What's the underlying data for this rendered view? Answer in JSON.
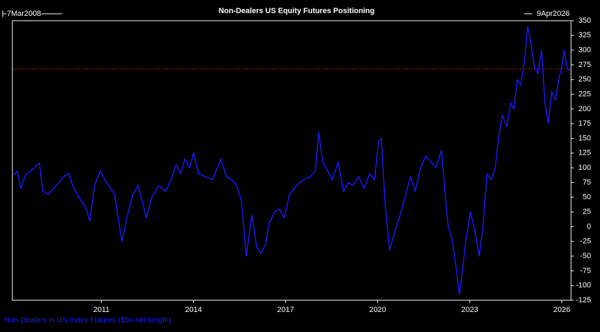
{
  "chart_data": {
    "type": "line",
    "title": "Non-Dealers US Equity Futures Positioning",
    "start_label": "7Mar2008",
    "end_label": "9Apr2026",
    "x": [
      2008.15,
      2008.26,
      2008.37,
      2008.55,
      2008.71,
      2008.82,
      2008.98,
      2009.09,
      2009.27,
      2009.45,
      2009.61,
      2009.76,
      2009.94,
      2010.06,
      2010.21,
      2010.39,
      2010.51,
      2010.62,
      2010.78,
      2010.96,
      2011.11,
      2011.29,
      2011.43,
      2011.56,
      2011.67,
      2011.85,
      2012.03,
      2012.19,
      2012.35,
      2012.46,
      2012.64,
      2012.87,
      2013.09,
      2013.27,
      2013.43,
      2013.58,
      2013.72,
      2013.88,
      2014.0,
      2014.17,
      2014.39,
      2014.62,
      2014.78,
      2014.89,
      2015.07,
      2015.25,
      2015.4,
      2015.56,
      2015.72,
      2015.9,
      2016.06,
      2016.19,
      2016.35,
      2016.46,
      2016.64,
      2016.8,
      2016.96,
      2017.13,
      2017.36,
      2017.58,
      2017.81,
      2017.97,
      2018.08,
      2018.21,
      2018.37,
      2018.53,
      2018.71,
      2018.89,
      2019.04,
      2019.2,
      2019.38,
      2019.56,
      2019.74,
      2019.9,
      2020.03,
      2020.12,
      2020.24,
      2020.39,
      2020.55,
      2020.73,
      2020.89,
      2021.07,
      2021.22,
      2021.4,
      2021.56,
      2021.74,
      2021.9,
      2022.08,
      2022.19,
      2022.3,
      2022.42,
      2022.53,
      2022.66,
      2022.75,
      2022.87,
      2023.02,
      2023.16,
      2023.31,
      2023.43,
      2023.56,
      2023.7,
      2023.83,
      2023.94,
      2024.06,
      2024.21,
      2024.33,
      2024.44,
      2024.55,
      2024.66,
      2024.78,
      2024.89,
      2025.0,
      2025.11,
      2025.22,
      2025.34,
      2025.45,
      2025.56,
      2025.67,
      2025.79,
      2025.9,
      2026.01,
      2026.08,
      2026.17,
      2026.26
    ],
    "series": [
      {
        "name": "Non-Dealers in US Index Futures ($bn net length)",
        "color": "#1a1aff",
        "values": [
          88,
          95,
          65,
          90,
          95,
          100,
          108,
          60,
          55,
          65,
          75,
          85,
          90,
          70,
          55,
          40,
          30,
          10,
          70,
          95,
          80,
          65,
          55,
          10,
          -25,
          20,
          55,
          70,
          40,
          15,
          50,
          70,
          60,
          80,
          105,
          90,
          115,
          100,
          125,
          90,
          85,
          80,
          100,
          115,
          85,
          80,
          70,
          45,
          -50,
          20,
          -35,
          -45,
          -30,
          5,
          25,
          30,
          15,
          55,
          70,
          80,
          85,
          95,
          160,
          110,
          95,
          80,
          110,
          60,
          75,
          70,
          85,
          65,
          90,
          80,
          145,
          150,
          40,
          -40,
          -10,
          20,
          50,
          85,
          60,
          100,
          120,
          110,
          100,
          130,
          60,
          0,
          -20,
          -60,
          -115,
          -80,
          -25,
          25,
          -5,
          -50,
          0,
          90,
          80,
          100,
          150,
          190,
          170,
          210,
          200,
          250,
          240,
          280,
          340,
          310,
          270,
          260,
          300,
          210,
          175,
          230,
          215,
          250,
          275,
          300,
          270,
          265
        ]
      }
    ],
    "reference_line": 268,
    "reference_color": "#cc2222",
    "xlim": [
      2008.1,
      2026.3
    ],
    "xticks": [
      2011,
      2014,
      2017,
      2020,
      2023,
      2026
    ],
    "ylim": [
      -125,
      350
    ],
    "yticks": [
      -125,
      -100,
      -75,
      -50,
      -25,
      0,
      25,
      50,
      75,
      100,
      125,
      150,
      175,
      200,
      225,
      250,
      275,
      300,
      325,
      350
    ],
    "grid": false
  }
}
